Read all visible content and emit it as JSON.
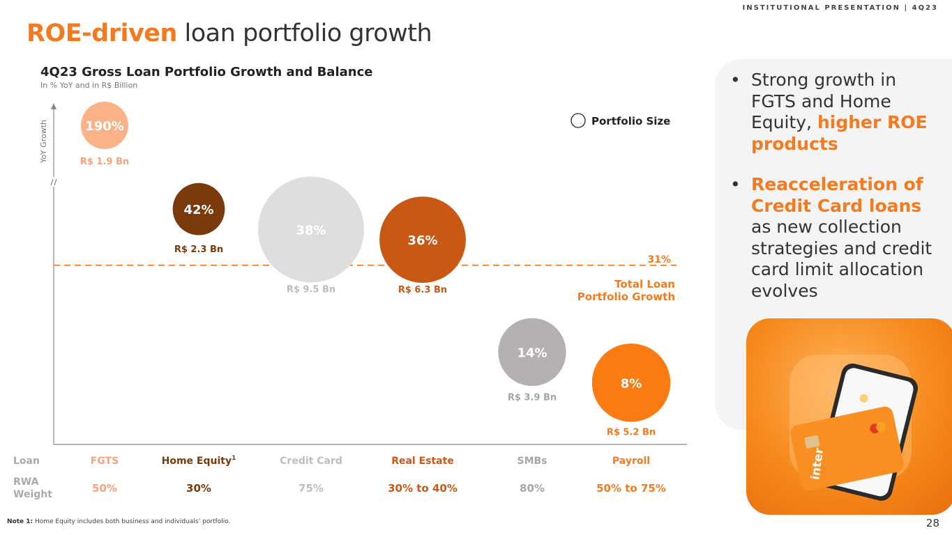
{
  "header": {
    "label": "INSTITUTIONAL PRESENTATION | 4Q23"
  },
  "title": {
    "highlight": "ROE-driven",
    "rest": " loan portfolio growth"
  },
  "chart_data": {
    "type": "bubble",
    "title": "4Q23 Gross Loan Portfolio Growth and Balance",
    "subtitle": "In % YoY and in R$ Billion",
    "ylabel": "YoY Growth",
    "legend": "Portfolio Size",
    "row_labels": {
      "loan": "Loan",
      "rwa": [
        "RWA",
        "Weight"
      ]
    },
    "reference": {
      "value": 31,
      "label": "31%",
      "caption": [
        "Total Loan",
        "Portfolio Growth"
      ],
      "color": "#f47a20"
    },
    "categories": [
      "FGTS",
      "Home Equity",
      "Credit Card",
      "Real Estate",
      "SMBs",
      "Payroll"
    ],
    "category_superscripts": [
      "",
      "1",
      "",
      "",
      "",
      ""
    ],
    "growth": [
      190,
      42,
      38,
      36,
      14,
      8
    ],
    "growth_labels": [
      "190%",
      "42%",
      "38%",
      "36%",
      "14%",
      "8%"
    ],
    "balance": [
      1.9,
      2.3,
      9.5,
      6.3,
      3.9,
      5.2
    ],
    "balance_labels": [
      "R$ 1.9 Bn",
      "R$ 2.3 Bn",
      "R$ 9.5 Bn",
      "R$ 6.3 Bn",
      "R$ 3.9 Bn",
      "R$ 5.2 Bn"
    ],
    "rwa_weight": [
      "50%",
      "30%",
      "75%",
      "30% to 40%",
      "80%",
      "50% to 75%"
    ],
    "colors": [
      "#fbb287",
      "#7a3a0c",
      "#dedede",
      "#c95815",
      "#b5b1b0",
      "#fc7b12"
    ],
    "label_colors": [
      "#f7a27a",
      "#7a3a0c",
      "#bdbdbd",
      "#c95815",
      "#a8a4a3",
      "#f47a20"
    ]
  },
  "bullets": {
    "b1_text": "Strong growth in FGTS and Home Equity, ",
    "b1_highlight": "higher ROE products",
    "b2_highlight": "Reacceleration of Credit Card loans",
    "b2_text": " as new collection strategies and credit card limit allocation evolves"
  },
  "promo": {
    "card_brand": "inter"
  },
  "footnote": {
    "label": "Note 1:",
    "text": " Home Equity includes both business and individuals’ portfolio."
  },
  "page": {
    "number": "28"
  }
}
